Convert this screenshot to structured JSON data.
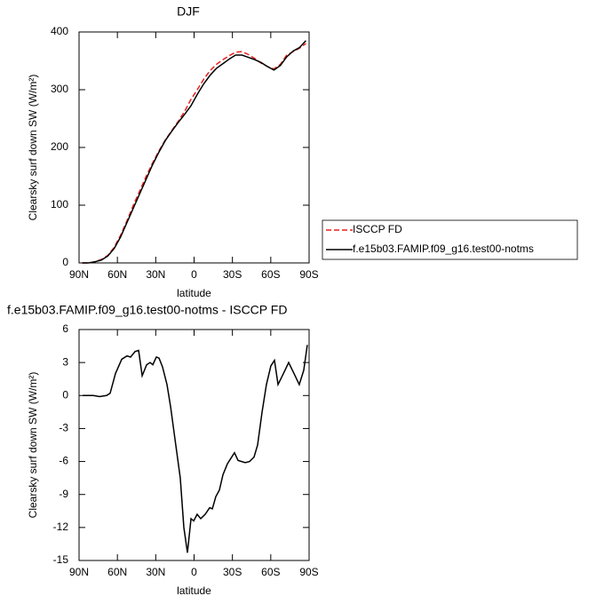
{
  "chart_data": [
    {
      "type": "line",
      "title": "DJF",
      "xlabel": "latitude",
      "ylabel": "Clearsky surf down SW (W/m²)",
      "xlim": [
        90,
        -90
      ],
      "xticks": [
        {
          "value": 90,
          "label": "90N"
        },
        {
          "value": 60,
          "label": "60N"
        },
        {
          "value": 30,
          "label": "30N"
        },
        0,
        {
          "value": -30,
          "label": "30S"
        },
        {
          "value": -60,
          "label": "60S"
        },
        {
          "value": -90,
          "label": "90S"
        }
      ],
      "ylim": [
        0,
        400
      ],
      "yticks": [
        0,
        100,
        200,
        300,
        400
      ],
      "legend": "right",
      "x": [
        87.5,
        82.5,
        77.5,
        72.5,
        67.5,
        62.5,
        57.5,
        52.5,
        47.5,
        42.5,
        37.5,
        32.5,
        27.5,
        22.5,
        17.5,
        12.5,
        7.5,
        2.5,
        -2.5,
        -7.5,
        -12.5,
        -17.5,
        -22.5,
        -27.5,
        -32.5,
        -37.5,
        -42.5,
        -47.5,
        -52.5,
        -57.5,
        -62.5,
        -67.5,
        -72.5,
        -77.5,
        -82.5,
        -87.5
      ],
      "series": [
        {
          "name": "ISCCP FD",
          "color": "#e8201c",
          "dashed": true,
          "values": [
            0,
            0,
            2,
            6,
            13,
            27,
            48,
            73,
            100,
            125,
            150,
            173,
            194,
            213,
            229,
            245,
            262,
            283,
            300,
            318,
            333,
            344,
            352,
            359,
            365,
            366,
            361,
            354,
            346,
            340,
            336,
            344,
            360,
            366,
            372,
            380
          ]
        },
        {
          "name": "f.e15b03.FAMIP.f09_g16.test00-notms",
          "color": "#000000",
          "dashed": false,
          "values": [
            0,
            0,
            2,
            5,
            12,
            25,
            45,
            70,
            95,
            120,
            145,
            170,
            192,
            212,
            228,
            243,
            257,
            272,
            292,
            310,
            325,
            337,
            345,
            353,
            360,
            360,
            356,
            352,
            347,
            340,
            334,
            342,
            357,
            367,
            373,
            385
          ]
        }
      ]
    },
    {
      "type": "line",
      "title": "f.e15b03.FAMIP.f09_g16.test00-notms - ISCCP FD",
      "xlabel": "latitude",
      "ylabel": "Clearsky surf down SW (W/m²)",
      "xlim": [
        90,
        -90
      ],
      "xticks": [
        {
          "value": 90,
          "label": "90N"
        },
        {
          "value": 60,
          "label": "60N"
        },
        {
          "value": 30,
          "label": "30N"
        },
        0,
        {
          "value": -30,
          "label": "30S"
        },
        {
          "value": -60,
          "label": "60S"
        },
        {
          "value": -90,
          "label": "90S"
        }
      ],
      "ylim": [
        -15,
        6
      ],
      "yticks": [
        -15,
        -12,
        -9,
        -6,
        -3,
        0,
        3,
        6
      ],
      "color": "#000000",
      "x": [
        87.2,
        78.9,
        74.0,
        68.5,
        65.7,
        61.5,
        56.6,
        52.5,
        49.7,
        46.2,
        43.4,
        40.6,
        37.1,
        34.4,
        32.3,
        29.5,
        27.4,
        24.7,
        21.2,
        18.4,
        14.9,
        10.8,
        8.0,
        5.2,
        2.4,
        0.3,
        -2.4,
        -5.2,
        -8.7,
        -12.2,
        -14.3,
        -17.0,
        -19.8,
        -22.6,
        -26.1,
        -31.6,
        -34.4,
        -40.0,
        -43.4,
        -46.9,
        -49.7,
        -53.2,
        -56.6,
        -60.1,
        -62.9,
        -65.7,
        -69.9,
        -74.0,
        -78.2,
        -82.3,
        -85.8,
        -88.6
      ],
      "values": [
        0,
        0,
        -0.1,
        0,
        0.2,
        2.0,
        3.3,
        3.6,
        3.5,
        4.0,
        4.1,
        1.8,
        2.8,
        3.0,
        2.8,
        3.5,
        3.4,
        2.6,
        1.0,
        -1,
        -4,
        -7.5,
        -12,
        -14.3,
        -11.2,
        -11.4,
        -10.8,
        -11.2,
        -10.8,
        -10.2,
        -10.3,
        -9.2,
        -8.6,
        -7.2,
        -6.2,
        -5.2,
        -5.9,
        -6.1,
        -6.0,
        -5.6,
        -4.5,
        -1.5,
        1.0,
        2.7,
        3.2,
        1.0,
        2.0,
        3.0,
        2.0,
        1.0,
        2.3,
        4.6
      ]
    }
  ]
}
